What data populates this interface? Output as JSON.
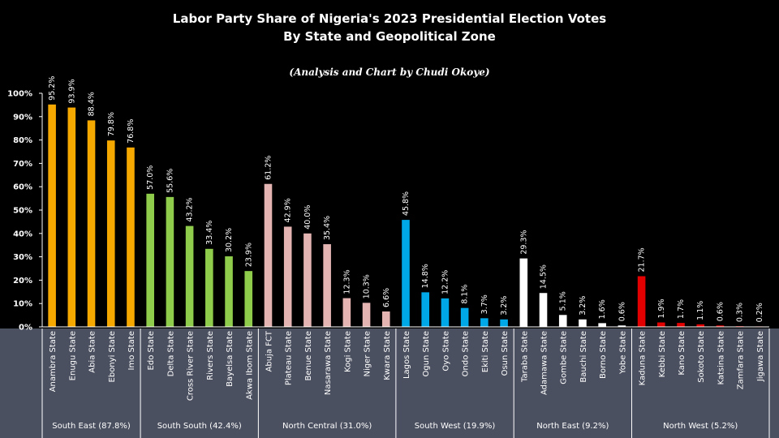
{
  "chart_data": {
    "type": "bar",
    "title": "Labor Party Share of Nigeria's 2023 Presidential Election Votes",
    "subtitle": "By State and Geopolitical Zone",
    "credit": "(Analysis and Chart by Chudi Okoye)",
    "ylim": [
      0,
      100
    ],
    "yticks": [
      "0%",
      "10%",
      "20%",
      "30%",
      "40%",
      "50%",
      "60%",
      "70%",
      "80%",
      "90%",
      "100%"
    ],
    "grid": false,
    "categories": [
      "Anambra State",
      "Enugu State",
      "Abia State",
      "Ebonyi State",
      "Imo State",
      "Edo State",
      "Delta State",
      "Cross River State",
      "Rivers State",
      "Bayelsa State",
      "Akwa Ibom State",
      "Abuja FCT",
      "Plateau State",
      "Benue State",
      "Nasarawa State",
      "Kogi State",
      "Niger State",
      "Kwara State",
      "Lagos State",
      "Ogun State",
      "Oyo State",
      "Ondo State",
      "Ekiti State",
      "Osun State",
      "Taraba State",
      "Adamawa State",
      "Gombe State",
      "Bauchi State",
      "Borno State",
      "Yobe State",
      "Kaduna State",
      "Kebbi State",
      "Kano State",
      "Sokoto State",
      "Katsina State",
      "Zamfara State",
      "Jigawa State"
    ],
    "values": [
      95.2,
      93.9,
      88.4,
      79.8,
      76.8,
      57.0,
      55.6,
      43.2,
      33.4,
      30.2,
      23.9,
      61.2,
      42.9,
      40.0,
      35.4,
      12.3,
      10.3,
      6.6,
      45.8,
      14.8,
      12.2,
      8.1,
      3.7,
      3.2,
      29.3,
      14.5,
      5.1,
      3.2,
      1.6,
      0.6,
      21.7,
      1.9,
      1.7,
      1.1,
      0.6,
      0.3,
      0.2
    ],
    "value_labels": [
      "95.2%",
      "93.9%",
      "88.4%",
      "79.8%",
      "76.8%",
      "57.0%",
      "55.6%",
      "43.2%",
      "33.4%",
      "30.2%",
      "23.9%",
      "61.2%",
      "42.9%",
      "40.0%",
      "35.4%",
      "12.3%",
      "10.3%",
      "6.6%",
      "45.8%",
      "14.8%",
      "12.2%",
      "8.1%",
      "3.7%",
      "3.2%",
      "29.3%",
      "14.5%",
      "5.1%",
      "3.2%",
      "1.6%",
      "0.6%",
      "21.7%",
      "1.9%",
      "1.7%",
      "1.1%",
      "0.6%",
      "0.3%",
      "0.2%"
    ],
    "zones": [
      {
        "label": "South East (87.8%)",
        "count": 5,
        "color": "#f5a800"
      },
      {
        "label": "South South (42.4%)",
        "count": 6,
        "color": "#8fcc4c"
      },
      {
        "label": "North Central (31.0%)",
        "count": 7,
        "color": "#e3b4b2"
      },
      {
        "label": "South West (19.9%)",
        "count": 6,
        "color": "#00a8e8"
      },
      {
        "label": "North East (9.2%)",
        "count": 6,
        "color": "#ffffff"
      },
      {
        "label": "North West (5.2%)",
        "count": 7,
        "color": "#e30000"
      }
    ]
  },
  "colors": {
    "background": "#000000",
    "category_panel": "#4b5060",
    "text": "#ffffff"
  }
}
